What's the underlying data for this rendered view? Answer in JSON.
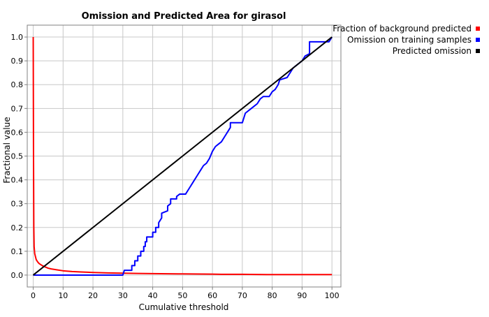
{
  "chart_data": {
    "type": "line",
    "title": "Omission and Predicted Area for girasol",
    "xlabel": "Cumulative threshold",
    "ylabel": "Fractional value",
    "xlim": [
      -2,
      103
    ],
    "ylim": [
      -0.05,
      1.05
    ],
    "x_ticks": [
      0,
      10,
      20,
      30,
      40,
      50,
      60,
      70,
      80,
      90,
      100
    ],
    "y_ticks": [
      0.0,
      0.1,
      0.2,
      0.3,
      0.4,
      0.5,
      0.6,
      0.7,
      0.8,
      0.9,
      1.0
    ],
    "x_tick_labels": [
      "0",
      "10",
      "20",
      "30",
      "40",
      "50",
      "60",
      "70",
      "80",
      "90",
      "100"
    ],
    "y_tick_labels": [
      "0.0",
      "0.1",
      "0.2",
      "0.3",
      "0.4",
      "0.5",
      "0.6",
      "0.7",
      "0.8",
      "0.9",
      "1.0"
    ],
    "grid": true,
    "legend_position": "top-right outside plot",
    "series": [
      {
        "name": "Fraction of background predicted",
        "color": "#ff0000",
        "points": [
          [
            0,
            1.0
          ],
          [
            0.1,
            0.5
          ],
          [
            0.2,
            0.2
          ],
          [
            0.3,
            0.12
          ],
          [
            0.5,
            0.09
          ],
          [
            0.8,
            0.075
          ],
          [
            1,
            0.065
          ],
          [
            1.5,
            0.055
          ],
          [
            2,
            0.048
          ],
          [
            3,
            0.04
          ],
          [
            4,
            0.034
          ],
          [
            5,
            0.029
          ],
          [
            6,
            0.026
          ],
          [
            8,
            0.022
          ],
          [
            10,
            0.018
          ],
          [
            13,
            0.015
          ],
          [
            16,
            0.013
          ],
          [
            20,
            0.011
          ],
          [
            25,
            0.009
          ],
          [
            30,
            0.008
          ],
          [
            35,
            0.007
          ],
          [
            40,
            0.006
          ],
          [
            50,
            0.005
          ],
          [
            60,
            0.004
          ],
          [
            63,
            0.003
          ],
          [
            70,
            0.003
          ],
          [
            80,
            0.002
          ],
          [
            90,
            0.002
          ],
          [
            100,
            0.002
          ]
        ]
      },
      {
        "name": "Omission on training samples",
        "color": "#0000ff",
        "points": [
          [
            0,
            0.0
          ],
          [
            30,
            0.0
          ],
          [
            30.5,
            0.02
          ],
          [
            33,
            0.02
          ],
          [
            33,
            0.04
          ],
          [
            34,
            0.04
          ],
          [
            34,
            0.06
          ],
          [
            35,
            0.06
          ],
          [
            35,
            0.08
          ],
          [
            36,
            0.08
          ],
          [
            36,
            0.1
          ],
          [
            37,
            0.1
          ],
          [
            37,
            0.12
          ],
          [
            37.5,
            0.12
          ],
          [
            37.5,
            0.14
          ],
          [
            38,
            0.14
          ],
          [
            38,
            0.16
          ],
          [
            40,
            0.16
          ],
          [
            40,
            0.18
          ],
          [
            41,
            0.18
          ],
          [
            41,
            0.2
          ],
          [
            42,
            0.2
          ],
          [
            42,
            0.22
          ],
          [
            43,
            0.24
          ],
          [
            43,
            0.26
          ],
          [
            45,
            0.27
          ],
          [
            45,
            0.29
          ],
          [
            46,
            0.3
          ],
          [
            46,
            0.32
          ],
          [
            48,
            0.32
          ],
          [
            48,
            0.33
          ],
          [
            49,
            0.34
          ],
          [
            51,
            0.34
          ],
          [
            52,
            0.36
          ],
          [
            53,
            0.38
          ],
          [
            54,
            0.4
          ],
          [
            55,
            0.42
          ],
          [
            56,
            0.44
          ],
          [
            57,
            0.46
          ],
          [
            58,
            0.47
          ],
          [
            59,
            0.49
          ],
          [
            60,
            0.52
          ],
          [
            61,
            0.54
          ],
          [
            62,
            0.55
          ],
          [
            63,
            0.56
          ],
          [
            64,
            0.58
          ],
          [
            65,
            0.6
          ],
          [
            66,
            0.62
          ],
          [
            66,
            0.64
          ],
          [
            70,
            0.64
          ],
          [
            71,
            0.68
          ],
          [
            73,
            0.7
          ],
          [
            74,
            0.71
          ],
          [
            75,
            0.72
          ],
          [
            76,
            0.74
          ],
          [
            77,
            0.75
          ],
          [
            79,
            0.75
          ],
          [
            80,
            0.77
          ],
          [
            81,
            0.78
          ],
          [
            82,
            0.8
          ],
          [
            82.5,
            0.82
          ],
          [
            85,
            0.83
          ],
          [
            86,
            0.85
          ],
          [
            87,
            0.87
          ],
          [
            88,
            0.88
          ],
          [
            89,
            0.89
          ],
          [
            90,
            0.9
          ],
          [
            91,
            0.92
          ],
          [
            92.5,
            0.93
          ],
          [
            92.5,
            0.98
          ],
          [
            99,
            0.98
          ],
          [
            100,
            1.0
          ]
        ]
      },
      {
        "name": "Predicted omission",
        "color": "#000000",
        "points": [
          [
            0,
            0.0
          ],
          [
            100,
            1.0
          ]
        ]
      }
    ]
  }
}
